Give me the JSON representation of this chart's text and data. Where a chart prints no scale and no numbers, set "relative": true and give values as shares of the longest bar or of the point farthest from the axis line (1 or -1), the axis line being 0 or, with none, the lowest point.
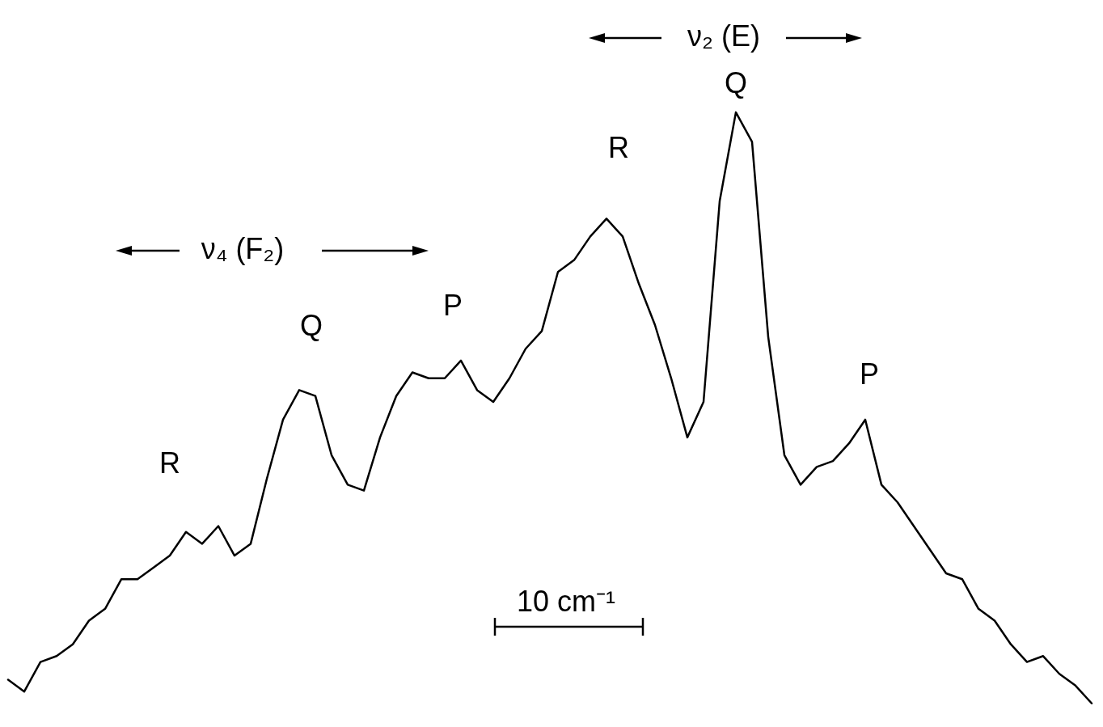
{
  "chart_data": {
    "type": "line",
    "relative": true,
    "color": "#000000",
    "categories": [
      null,
      null,
      null,
      null,
      null,
      null,
      null,
      null,
      null,
      null,
      null,
      null,
      null,
      null,
      null,
      null,
      null,
      null,
      null,
      null,
      null,
      null,
      null,
      null,
      null,
      null,
      null,
      null,
      null,
      null,
      null,
      null,
      null,
      null,
      null,
      null,
      null,
      null,
      null,
      null,
      null,
      null,
      null,
      null,
      null,
      null,
      null,
      null,
      null,
      null,
      null,
      null,
      null,
      null,
      null,
      null,
      null,
      null,
      null,
      null,
      null,
      null,
      null,
      null,
      null,
      null,
      null,
      null
    ],
    "values": [
      0.04,
      0.02,
      0.07,
      0.08,
      0.1,
      0.14,
      0.16,
      0.21,
      0.21,
      0.23,
      0.25,
      0.29,
      0.27,
      0.3,
      0.25,
      0.27,
      0.38,
      0.48,
      0.53,
      0.52,
      0.42,
      0.37,
      0.36,
      0.45,
      0.52,
      0.56,
      0.55,
      0.55,
      0.58,
      0.53,
      0.51,
      0.55,
      0.6,
      0.63,
      0.73,
      0.75,
      0.79,
      0.82,
      0.79,
      0.71,
      0.64,
      0.55,
      0.45,
      0.51,
      0.85,
      1,
      0.95,
      0.62,
      0.42,
      0.37,
      0.4,
      0.41,
      0.44,
      0.48,
      0.37,
      0.34,
      0.3,
      0.26,
      0.22,
      0.21,
      0.16,
      0.14,
      0.1,
      0.07,
      0.08,
      0.05,
      0.03,
      0
    ],
    "annotations": [
      "R",
      "Q",
      "P",
      "R",
      "Q",
      "P",
      "ν₄ (F₂)",
      "ν₂ (E)",
      "10 cm⁻¹"
    ]
  }
}
